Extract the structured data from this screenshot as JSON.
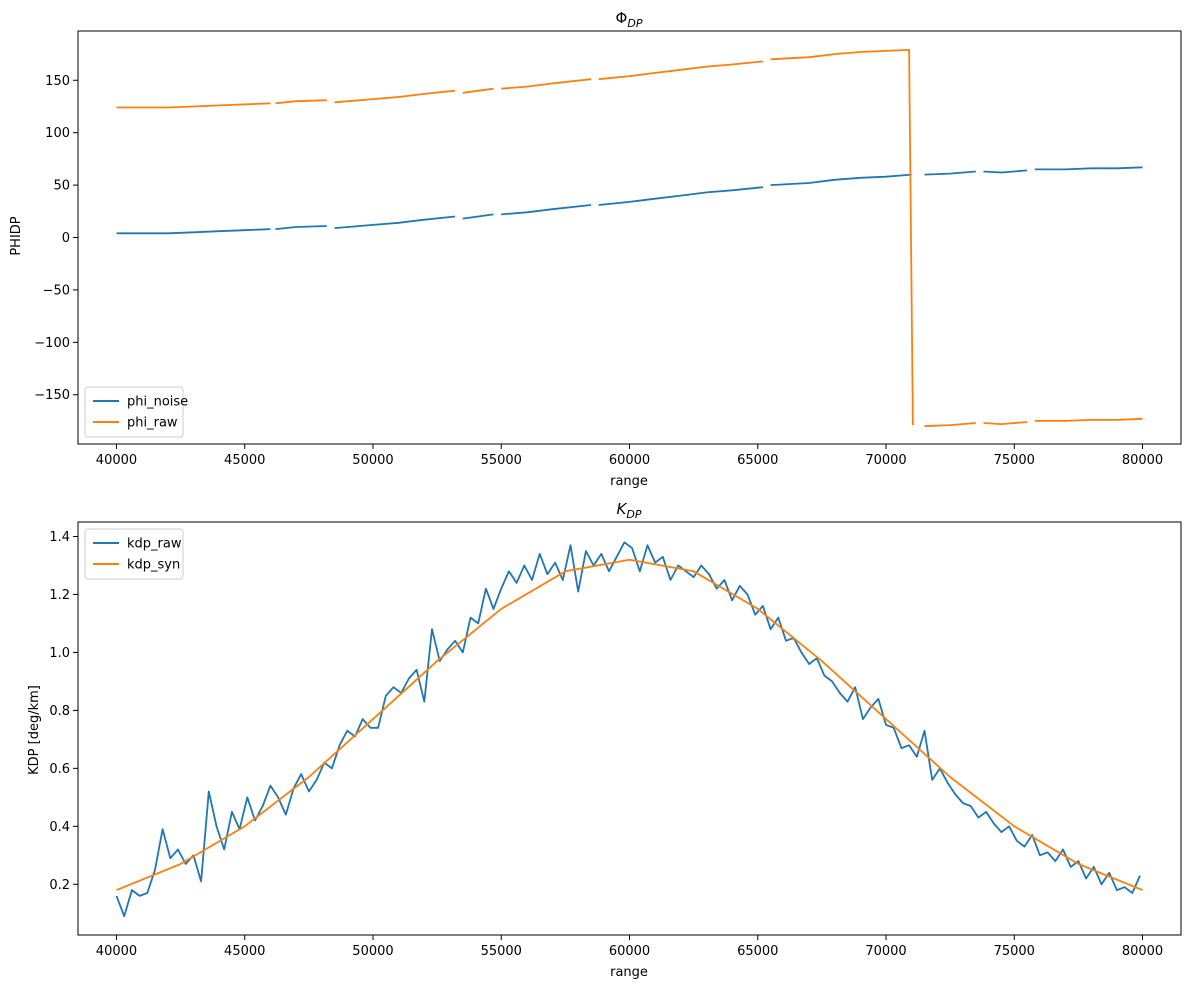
{
  "chart_data": [
    {
      "type": "line",
      "title": "Φ",
      "title_sub": "DP",
      "xlabel": "range",
      "ylabel": "PHIDP",
      "xlim": [
        38500,
        81500
      ],
      "ylim": [
        -197,
        197
      ],
      "xticks": [
        40000,
        45000,
        50000,
        55000,
        60000,
        65000,
        70000,
        75000,
        80000
      ],
      "yticks": [
        -150,
        -100,
        -50,
        0,
        50,
        100,
        150
      ],
      "ytick_labels": [
        "−150",
        "−100",
        "−50",
        "0",
        "50",
        "100",
        "150"
      ],
      "legend": "lower-left",
      "series": [
        {
          "name": "phi_noise",
          "color": "#1f77b4",
          "segments": [
            {
              "x": [
                40000,
                41000,
                42000,
                43000,
                44000,
                45000,
                46000
              ],
              "y": [
                4,
                4,
                4,
                5,
                6,
                7,
                8
              ]
            },
            {
              "x": [
                46200,
                47000,
                48200
              ],
              "y": [
                8,
                10,
                11
              ]
            },
            {
              "x": [
                48500,
                50000,
                51000,
                52000,
                53200
              ],
              "y": [
                9,
                12,
                14,
                17,
                20
              ]
            },
            {
              "x": [
                53500,
                54700
              ],
              "y": [
                18,
                22
              ]
            },
            {
              "x": [
                55000,
                56000,
                57000,
                58500
              ],
              "y": [
                22,
                24,
                27,
                31
              ]
            },
            {
              "x": [
                58800,
                60000,
                61000,
                62000,
                63000,
                64000,
                65200
              ],
              "y": [
                31,
                34,
                37,
                40,
                43,
                45,
                48
              ]
            },
            {
              "x": [
                65500,
                67000,
                68000,
                69000,
                70000,
                71000
              ],
              "y": [
                50,
                52,
                55,
                57,
                58,
                60
              ]
            },
            {
              "x": [
                71500,
                72500,
                73500
              ],
              "y": [
                60,
                61,
                63
              ]
            },
            {
              "x": [
                73800,
                74500,
                75500
              ],
              "y": [
                63,
                62,
                64
              ]
            },
            {
              "x": [
                75800,
                77000,
                78000,
                79000,
                80000
              ],
              "y": [
                65,
                65,
                66,
                66,
                67
              ]
            }
          ]
        },
        {
          "name": "phi_raw",
          "color": "#ff7f0e",
          "segments": [
            {
              "x": [
                40000,
                41000,
                42000,
                43000,
                44000,
                45000,
                46000
              ],
              "y": [
                124,
                124,
                124,
                125,
                126,
                127,
                128
              ]
            },
            {
              "x": [
                46200,
                47000,
                48200
              ],
              "y": [
                128,
                130,
                131
              ]
            },
            {
              "x": [
                48500,
                50000,
                51000,
                52000,
                53200
              ],
              "y": [
                129,
                132,
                134,
                137,
                140
              ]
            },
            {
              "x": [
                53500,
                54700
              ],
              "y": [
                138,
                142
              ]
            },
            {
              "x": [
                55000,
                56000,
                57000,
                58500
              ],
              "y": [
                142,
                144,
                147,
                151
              ]
            },
            {
              "x": [
                58800,
                60000,
                61000,
                62000,
                63000,
                64000,
                65200
              ],
              "y": [
                151,
                154,
                157,
                160,
                163,
                165,
                168
              ]
            },
            {
              "x": [
                65500,
                67000,
                68000,
                69000,
                70000,
                70900,
                71050
              ],
              "y": [
                170,
                172,
                175,
                177,
                178,
                179,
                -179
              ]
            },
            {
              "x": [
                71500,
                72500,
                73500
              ],
              "y": [
                -180,
                -179,
                -177
              ]
            },
            {
              "x": [
                73800,
                74500,
                75500
              ],
              "y": [
                -177,
                -178,
                -176
              ]
            },
            {
              "x": [
                75800,
                77000,
                78000,
                79000,
                80000
              ],
              "y": [
                -175,
                -175,
                -174,
                -174,
                -173
              ]
            }
          ]
        }
      ]
    },
    {
      "type": "line",
      "title": "K",
      "title_sub": "DP",
      "xlabel": "range",
      "ylabel": "KDP [deg/km]",
      "xlim": [
        38500,
        81500
      ],
      "ylim": [
        0.025,
        1.45
      ],
      "xticks": [
        40000,
        45000,
        50000,
        55000,
        60000,
        65000,
        70000,
        75000,
        80000
      ],
      "yticks": [
        0.2,
        0.4,
        0.6,
        0.8,
        1.0,
        1.2,
        1.4
      ],
      "ytick_labels": [
        "0.2",
        "0.4",
        "0.6",
        "0.8",
        "1.0",
        "1.2",
        "1.4"
      ],
      "legend": "upper-left",
      "series": [
        {
          "name": "kdp_raw",
          "color": "#1f77b4",
          "x": [
            40000,
            40300,
            40600,
            40900,
            41200,
            41500,
            41800,
            42100,
            42400,
            42700,
            43000,
            43300,
            43600,
            43900,
            44200,
            44500,
            44800,
            45100,
            45400,
            45700,
            46000,
            46300,
            46600,
            46900,
            47200,
            47500,
            47800,
            48100,
            48400,
            48700,
            49000,
            49300,
            49600,
            49900,
            50200,
            50500,
            50800,
            51100,
            51400,
            51700,
            52000,
            52300,
            52600,
            52900,
            53200,
            53500,
            53800,
            54100,
            54400,
            54700,
            55000,
            55300,
            55600,
            55900,
            56200,
            56500,
            56800,
            57100,
            57400,
            57700,
            58000,
            58300,
            58600,
            58900,
            59200,
            59500,
            59800,
            60100,
            60400,
            60700,
            61000,
            61300,
            61600,
            61900,
            62200,
            62500,
            62800,
            63100,
            63400,
            63700,
            64000,
            64300,
            64600,
            64900,
            65200,
            65500,
            65800,
            66100,
            66400,
            66700,
            67000,
            67300,
            67600,
            67900,
            68200,
            68500,
            68800,
            69100,
            69400,
            69700,
            70000,
            70300,
            70600,
            70900,
            71200,
            71500,
            71800,
            72100,
            72400,
            72700,
            73000,
            73300,
            73600,
            73900,
            74200,
            74500,
            74800,
            75100,
            75400,
            75700,
            76000,
            76300,
            76600,
            76900,
            77200,
            77500,
            77800,
            78100,
            78400,
            78700,
            79000,
            79300,
            79600,
            79900
          ],
          "y": [
            0.16,
            0.09,
            0.18,
            0.16,
            0.17,
            0.25,
            0.39,
            0.29,
            0.32,
            0.27,
            0.3,
            0.21,
            0.52,
            0.4,
            0.32,
            0.45,
            0.39,
            0.5,
            0.42,
            0.47,
            0.54,
            0.5,
            0.44,
            0.53,
            0.58,
            0.52,
            0.56,
            0.62,
            0.6,
            0.68,
            0.73,
            0.71,
            0.77,
            0.74,
            0.74,
            0.85,
            0.88,
            0.86,
            0.91,
            0.94,
            0.83,
            1.08,
            0.97,
            1.01,
            1.04,
            1.0,
            1.12,
            1.1,
            1.22,
            1.15,
            1.22,
            1.28,
            1.24,
            1.3,
            1.25,
            1.34,
            1.27,
            1.31,
            1.25,
            1.37,
            1.21,
            1.35,
            1.3,
            1.34,
            1.28,
            1.33,
            1.38,
            1.36,
            1.28,
            1.37,
            1.31,
            1.33,
            1.25,
            1.3,
            1.28,
            1.26,
            1.3,
            1.27,
            1.22,
            1.25,
            1.18,
            1.23,
            1.2,
            1.13,
            1.16,
            1.08,
            1.12,
            1.04,
            1.05,
            1.0,
            0.96,
            0.98,
            0.92,
            0.9,
            0.86,
            0.83,
            0.88,
            0.77,
            0.81,
            0.84,
            0.75,
            0.74,
            0.67,
            0.68,
            0.64,
            0.73,
            0.56,
            0.6,
            0.55,
            0.51,
            0.48,
            0.47,
            0.43,
            0.45,
            0.41,
            0.38,
            0.4,
            0.35,
            0.33,
            0.37,
            0.3,
            0.31,
            0.28,
            0.32,
            0.26,
            0.28,
            0.22,
            0.26,
            0.2,
            0.24,
            0.18,
            0.19,
            0.17,
            0.23
          ]
        },
        {
          "name": "kdp_syn",
          "color": "#ff7f0e",
          "x": [
            40000,
            42500,
            45000,
            47500,
            50000,
            52500,
            55000,
            57500,
            60000,
            62500,
            65000,
            67500,
            70000,
            72500,
            75000,
            77500,
            80000
          ],
          "y": [
            0.18,
            0.27,
            0.4,
            0.57,
            0.77,
            0.97,
            1.15,
            1.28,
            1.32,
            1.28,
            1.15,
            0.97,
            0.77,
            0.57,
            0.4,
            0.27,
            0.18
          ]
        }
      ]
    }
  ]
}
